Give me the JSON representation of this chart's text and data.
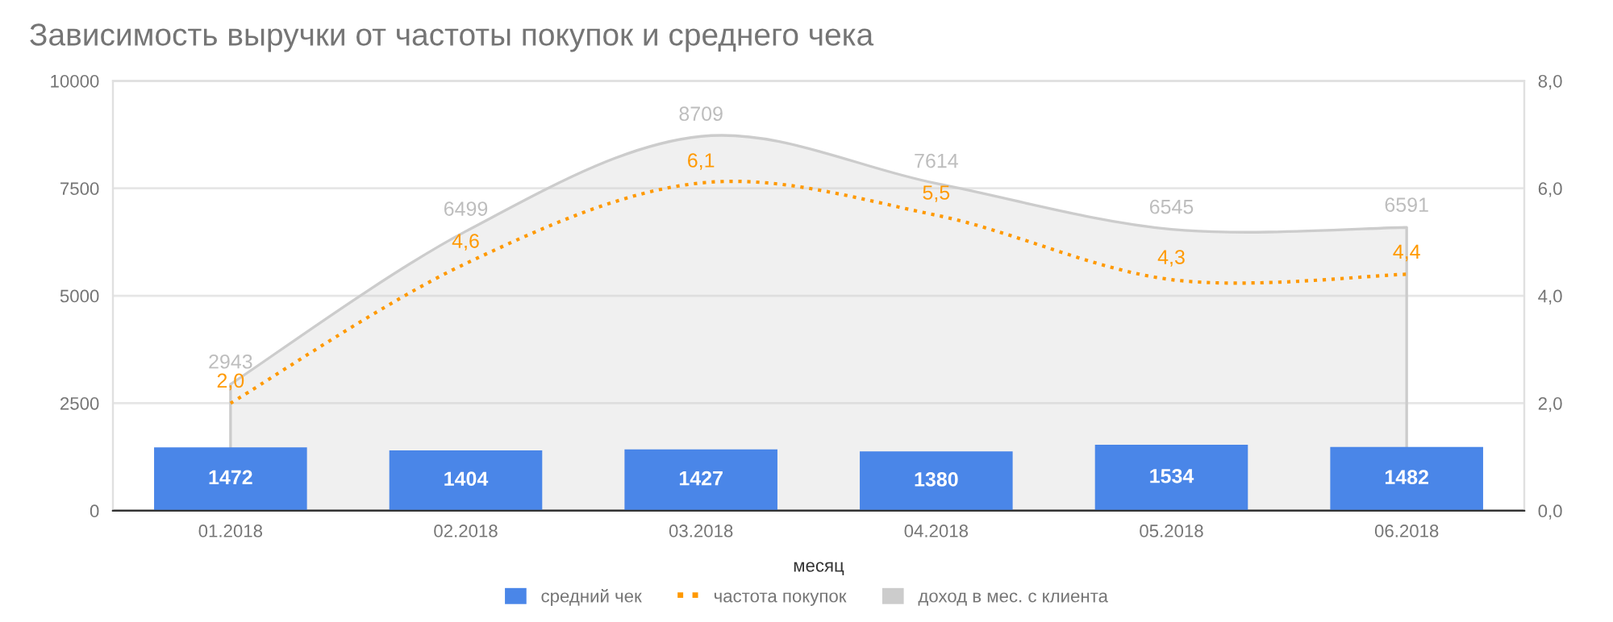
{
  "chart_data": {
    "type": "bar",
    "title": "Зависимость выручки от частоты покупок и среднего чека",
    "xlabel": "месяц",
    "categories": [
      "01.2018",
      "02.2018",
      "03.2018",
      "04.2018",
      "05.2018",
      "06.2018"
    ],
    "series": [
      {
        "name": "средний чек",
        "color": "#4a86e8",
        "values": [
          1472,
          1404,
          1427,
          1380,
          1534,
          1482
        ],
        "value_labels": [
          "1472",
          "1404",
          "1427",
          "1380",
          "1534",
          "1482"
        ]
      },
      {
        "name": "частота покупок",
        "type": "line",
        "axis": "y2",
        "color": "#ff9900",
        "line_style": "dotted",
        "marker": "none",
        "values": [
          2.0,
          4.6,
          6.1,
          5.5,
          4.3,
          4.4
        ],
        "value_labels": [
          "2,0",
          "4,6",
          "6,1",
          "5,5",
          "4,3",
          "4,4"
        ]
      },
      {
        "name": "доход в мес. с клиента",
        "type": "area",
        "color": "#cccccc",
        "values": [
          2943,
          6499,
          8709,
          7614,
          6545,
          6591
        ],
        "value_labels": [
          "2943",
          "6499",
          "8709",
          "7614",
          "6545",
          "6591"
        ]
      }
    ],
    "ylim": [
      0,
      10000
    ],
    "yticks": [
      0,
      2500,
      5000,
      7500,
      10000
    ],
    "y2lim": [
      0,
      8
    ],
    "y2ticks": [
      {
        "value": 0,
        "label": "0,0"
      },
      {
        "value": 2,
        "label": "2,0"
      },
      {
        "value": 4,
        "label": "4,0"
      },
      {
        "value": 6,
        "label": "6,0"
      },
      {
        "value": 8,
        "label": "8,0"
      }
    ],
    "grid": "y",
    "legend": "bottom"
  }
}
